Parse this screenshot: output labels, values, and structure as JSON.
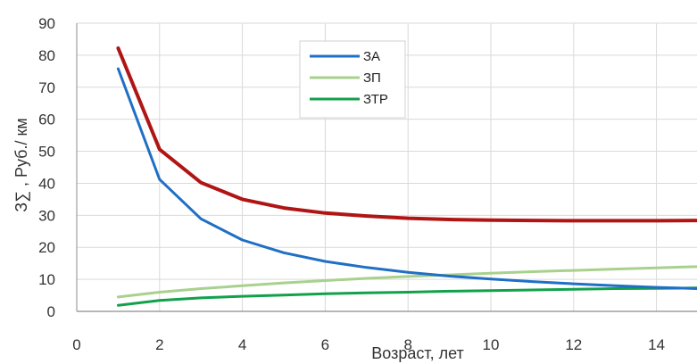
{
  "chart_data": {
    "type": "line",
    "title": "",
    "xlabel": "Возраст, лет",
    "ylabel": "З∑ , Руб./ км",
    "xlim": [
      0,
      15
    ],
    "ylim": [
      0,
      90
    ],
    "x_ticks": [
      "0",
      "2",
      "4",
      "6",
      "8",
      "10",
      "12",
      "14"
    ],
    "y_ticks": [
      "0",
      "10",
      "20",
      "30",
      "40",
      "50",
      "60",
      "70",
      "80",
      "90"
    ],
    "grid": true,
    "legend_position": "top-center",
    "x": [
      1,
      2,
      3,
      4,
      5,
      6,
      7,
      8,
      9,
      10,
      11,
      12,
      13,
      14,
      15
    ],
    "series": [
      {
        "name": "ЗА",
        "color": "#1f6fc5",
        "legend": true,
        "values": [
          75.8,
          41.2,
          28.9,
          22.3,
          18.3,
          15.6,
          13.7,
          12.2,
          11.0,
          10.1,
          9.3,
          8.6,
          8.0,
          7.5,
          7.1
        ]
      },
      {
        "name": "ЗП",
        "color": "#a9d18e",
        "legend": true,
        "values": [
          4.5,
          6.0,
          7.1,
          8.0,
          8.9,
          9.6,
          10.3,
          10.9,
          11.4,
          11.9,
          12.4,
          12.8,
          13.2,
          13.6,
          14.0
        ]
      },
      {
        "name": "ЗТР",
        "color": "#12a14b",
        "legend": true,
        "values": [
          1.9,
          3.4,
          4.2,
          4.7,
          5.1,
          5.5,
          5.8,
          6.0,
          6.3,
          6.5,
          6.7,
          6.9,
          7.1,
          7.2,
          7.3
        ]
      },
      {
        "name": "",
        "color": "#b01515",
        "legend": false,
        "values": [
          82.2,
          50.6,
          40.2,
          35.0,
          32.3,
          30.7,
          29.8,
          29.1,
          28.7,
          28.5,
          28.4,
          28.3,
          28.3,
          28.3,
          28.4
        ]
      }
    ]
  }
}
